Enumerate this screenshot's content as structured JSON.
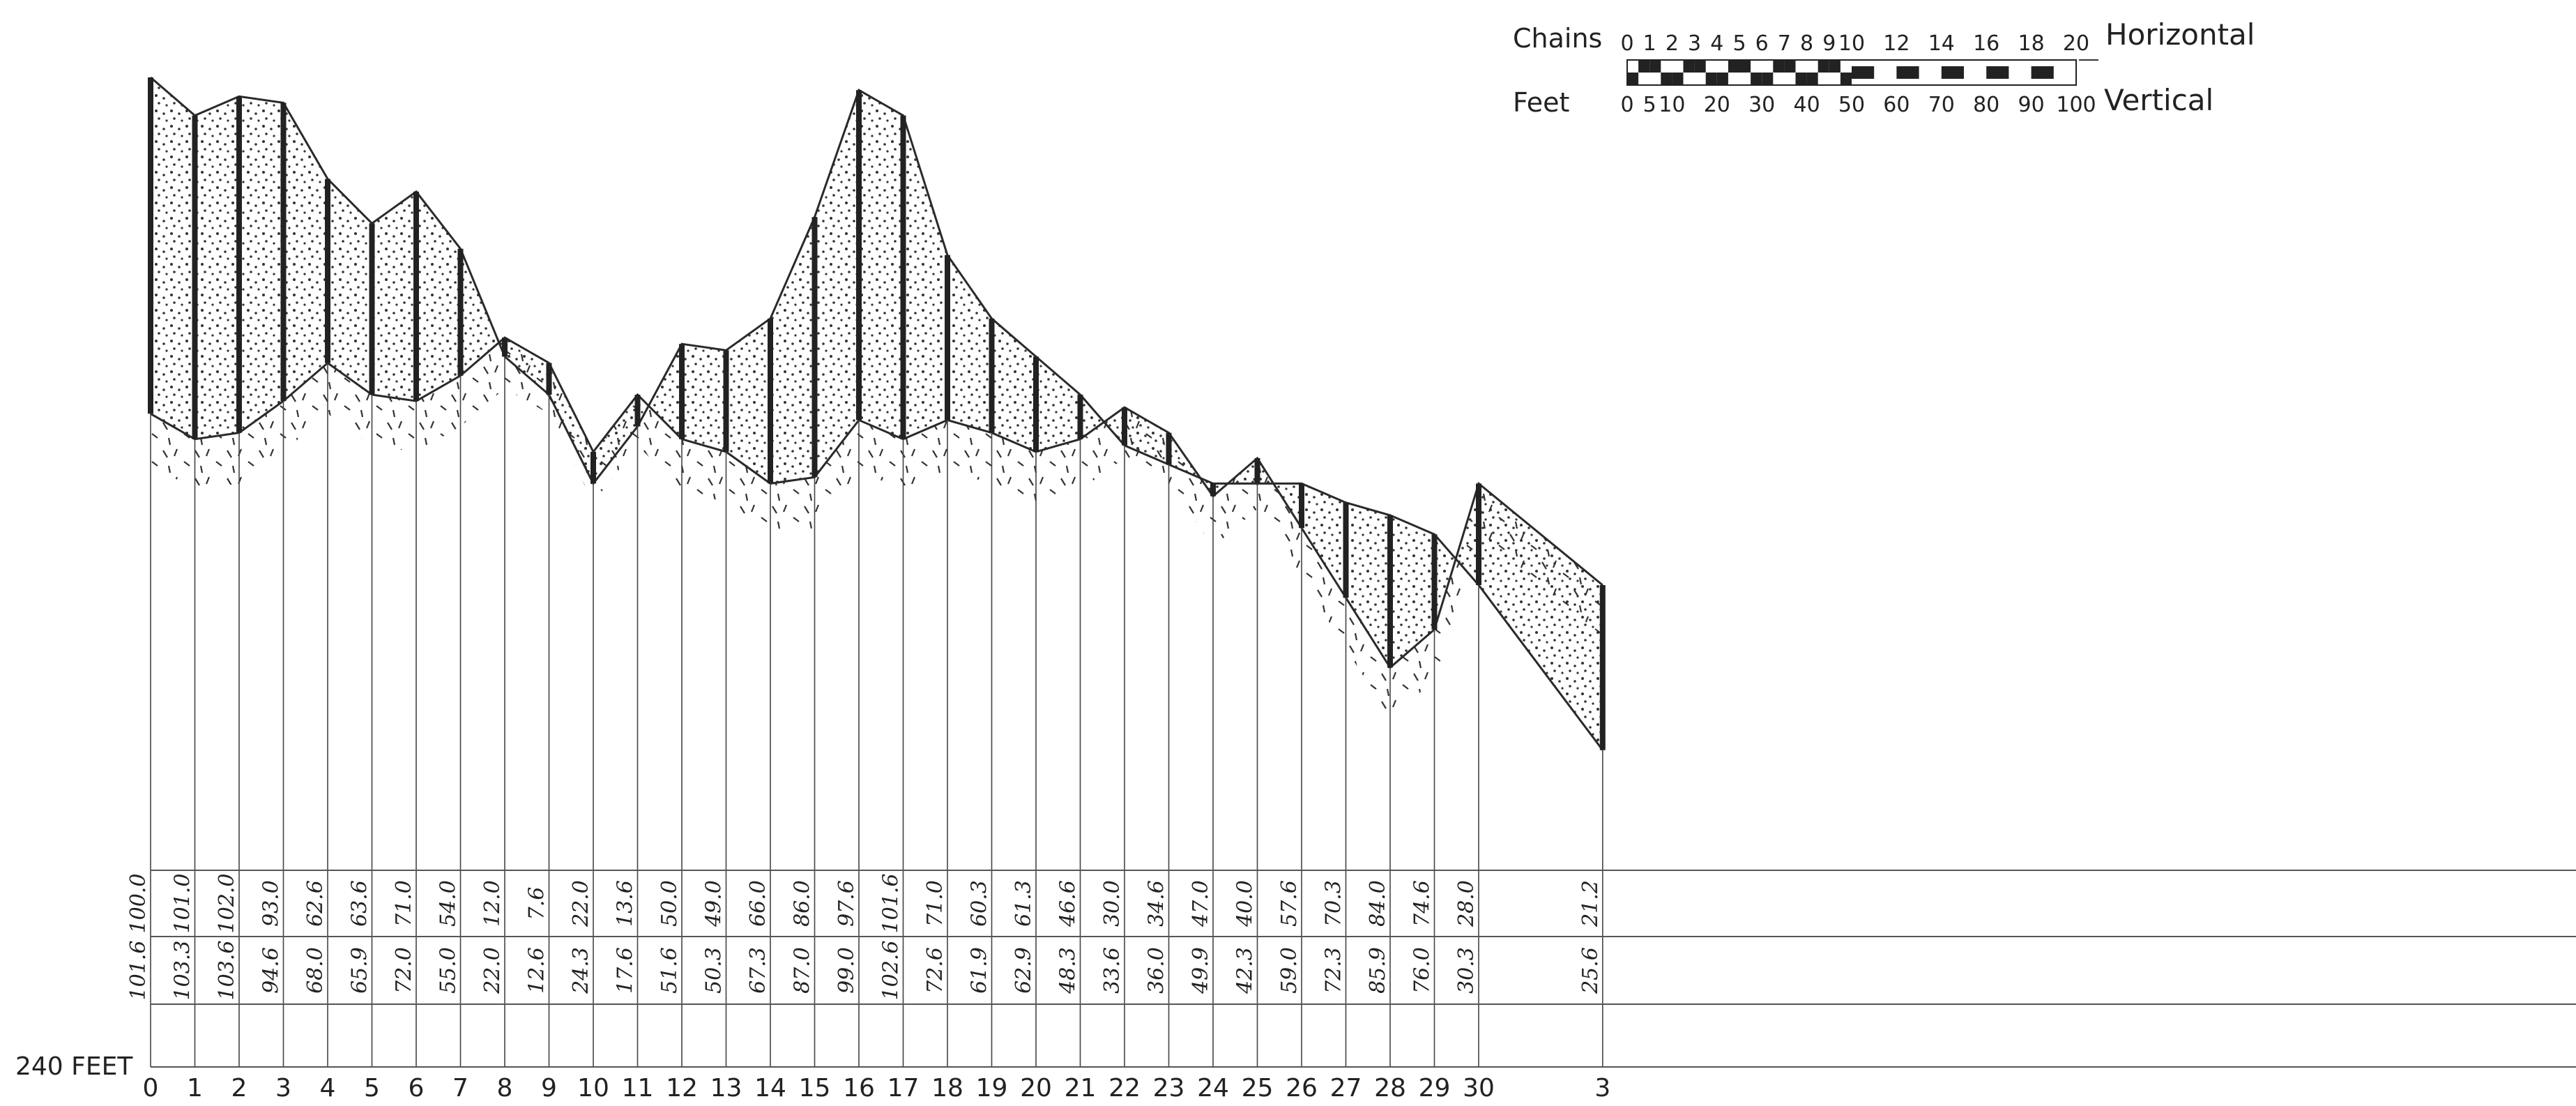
{
  "scale": {
    "top_label": "Chains",
    "bottom_label": "Feet",
    "right_top_label": "Horizontal",
    "right_bottom_label": "Vertical",
    "chains_ticks": [
      "0",
      "1",
      "2",
      "3",
      "4",
      "5",
      "6",
      "7",
      "8",
      "9",
      "10",
      "12",
      "14",
      "16",
      "18",
      "20"
    ],
    "feet_ticks": [
      "0",
      "5",
      "10",
      "20",
      "30",
      "40",
      "50",
      "60",
      "70",
      "80",
      "90",
      "100"
    ]
  },
  "datum_label": "240 FEET",
  "colors": {
    "ink": "#2a2a2a",
    "paper": "#ffffff",
    "fill_dots": "#333333"
  },
  "stations": [
    {
      "label": "0",
      "x": 0,
      "upper": "100.0",
      "lower": "101.6"
    },
    {
      "label": "1",
      "x": 1,
      "upper": "101.0",
      "lower": "103.3"
    },
    {
      "label": "2",
      "x": 2,
      "upper": "102.0",
      "lower": "103.6"
    },
    {
      "label": "3",
      "x": 3,
      "upper": "93.0",
      "lower": "94.6"
    },
    {
      "label": "4",
      "x": 4,
      "upper": "62.6",
      "lower": "68.0"
    },
    {
      "label": "5",
      "x": 5,
      "upper": "63.6",
      "lower": "65.9"
    },
    {
      "label": "6",
      "x": 6,
      "upper": "71.0",
      "lower": "72.0"
    },
    {
      "label": "7",
      "x": 7,
      "upper": "54.0",
      "lower": "55.0"
    },
    {
      "label": "8",
      "x": 8,
      "upper": "12.0",
      "lower": "22.0"
    },
    {
      "label": "9",
      "x": 9,
      "upper": "7.6",
      "lower": "12.6"
    },
    {
      "label": "10",
      "x": 10,
      "upper": "22.0",
      "lower": "24.3"
    },
    {
      "label": "11",
      "x": 11,
      "upper": "13.6",
      "lower": "17.6"
    },
    {
      "label": "12",
      "x": 12,
      "upper": "50.0",
      "lower": "51.6"
    },
    {
      "label": "13",
      "x": 13,
      "upper": "49.0",
      "lower": "50.3"
    },
    {
      "label": "14",
      "x": 14,
      "upper": "66.0",
      "lower": "67.3"
    },
    {
      "label": "15",
      "x": 15,
      "upper": "86.0",
      "lower": "87.0"
    },
    {
      "label": "16",
      "x": 16,
      "upper": "97.6",
      "lower": "99.0"
    },
    {
      "label": "17",
      "x": 17,
      "upper": "101.6",
      "lower": "102.6"
    },
    {
      "label": "18",
      "x": 18,
      "upper": "71.0",
      "lower": "72.6"
    },
    {
      "label": "19",
      "x": 19,
      "upper": "60.3",
      "lower": "61.9"
    },
    {
      "label": "20",
      "x": 20,
      "upper": "61.3",
      "lower": "62.9"
    },
    {
      "label": "21",
      "x": 21,
      "upper": "46.6",
      "lower": "48.3"
    },
    {
      "label": "22",
      "x": 22,
      "upper": "30.0",
      "lower": "33.6"
    },
    {
      "label": "23",
      "x": 23,
      "upper": "34.6",
      "lower": "36.0"
    },
    {
      "label": "24",
      "x": 24,
      "upper": "47.0",
      "lower": "49.9"
    },
    {
      "label": "25",
      "x": 25,
      "upper": "40.0",
      "lower": "42.3"
    },
    {
      "label": "26",
      "x": 26,
      "upper": "57.6",
      "lower": "59.0"
    },
    {
      "label": "27",
      "x": 27,
      "upper": "70.3",
      "lower": "72.3"
    },
    {
      "label": "28",
      "x": 28,
      "upper": "84.0",
      "lower": "85.9"
    },
    {
      "label": "29",
      "x": 29,
      "upper": "74.6",
      "lower": "76.0"
    },
    {
      "label": "30",
      "x": 30,
      "upper": "28.0",
      "lower": "30.3"
    },
    {
      "label": "3",
      "x": 32.8,
      "upper": "21.2",
      "lower": "25.6"
    }
  ],
  "profile": {
    "surface": [
      [
        0,
        10
      ],
      [
        1,
        16
      ],
      [
        2,
        13
      ],
      [
        3,
        14
      ],
      [
        4,
        26
      ],
      [
        5,
        33
      ],
      [
        6,
        28
      ],
      [
        7,
        37
      ],
      [
        8,
        54
      ],
      [
        9,
        60
      ],
      [
        10,
        74
      ],
      [
        11,
        65
      ],
      [
        12,
        52
      ],
      [
        13,
        53
      ],
      [
        14,
        48
      ],
      [
        15,
        32
      ],
      [
        16,
        12
      ],
      [
        17,
        16
      ],
      [
        18,
        38
      ],
      [
        19,
        48
      ],
      [
        20,
        54
      ],
      [
        21,
        60
      ],
      [
        22,
        68
      ],
      [
        23,
        71
      ],
      [
        24,
        74
      ],
      [
        25,
        74
      ],
      [
        26,
        74
      ],
      [
        27,
        77
      ],
      [
        28,
        79
      ],
      [
        29,
        82
      ],
      [
        30,
        90
      ],
      [
        32.8,
        116
      ]
    ],
    "rock": [
      [
        0,
        63
      ],
      [
        1,
        67
      ],
      [
        2,
        66
      ],
      [
        3,
        61
      ],
      [
        4,
        55
      ],
      [
        5,
        60
      ],
      [
        6,
        61
      ],
      [
        7,
        57
      ],
      [
        8,
        51
      ],
      [
        9,
        55
      ],
      [
        10,
        69
      ],
      [
        11,
        60
      ],
      [
        12,
        67
      ],
      [
        13,
        69
      ],
      [
        14,
        74
      ],
      [
        15,
        73
      ],
      [
        16,
        64
      ],
      [
        17,
        67
      ],
      [
        18,
        64
      ],
      [
        19,
        66
      ],
      [
        20,
        69
      ],
      [
        21,
        67
      ],
      [
        22,
        62
      ],
      [
        23,
        66
      ],
      [
        24,
        76
      ],
      [
        25,
        70
      ],
      [
        26,
        81
      ],
      [
        27,
        92
      ],
      [
        28,
        103
      ],
      [
        29,
        97
      ],
      [
        30,
        74
      ],
      [
        32.8,
        90
      ]
    ]
  }
}
